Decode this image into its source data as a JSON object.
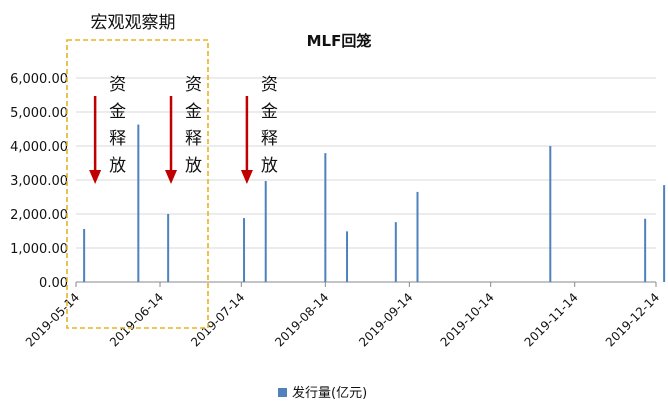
{
  "chart_data": {
    "type": "bar",
    "title": "MLF回笼",
    "series": [
      {
        "name": "发行量(亿元)",
        "color": "#4F81BD",
        "points": [
          {
            "x": "2019-05-17",
            "y": 1560
          },
          {
            "x": "2019-06-06",
            "y": 4630
          },
          {
            "x": "2019-06-17",
            "y": 2000
          },
          {
            "x": "2019-07-15",
            "y": 1880
          },
          {
            "x": "2019-07-23",
            "y": 2970
          },
          {
            "x": "2019-08-14",
            "y": 3790
          },
          {
            "x": "2019-08-22",
            "y": 1490
          },
          {
            "x": "2019-09-09",
            "y": 1760
          },
          {
            "x": "2019-09-17",
            "y": 2650
          },
          {
            "x": "2019-11-05",
            "y": 4000
          },
          {
            "x": "2019-12-10",
            "y": 1860
          },
          {
            "x": "2019-12-17",
            "y": 2850
          }
        ]
      }
    ],
    "x_ticks": [
      "2019-05-14",
      "2019-06-14",
      "2019-07-14",
      "2019-08-14",
      "2019-09-14",
      "2019-10-14",
      "2019-11-14",
      "2019-12-14"
    ],
    "x_range": [
      "2019-05-14",
      "2019-12-14"
    ],
    "y_ticks": [
      "0.00",
      "1,000.00",
      "2,000.00",
      "3,000.00",
      "4,000.00",
      "5,000.00",
      "6,000.00"
    ],
    "ylim": [
      0,
      6000
    ],
    "grid": true,
    "legend_position": "bottom-center",
    "annotations": {
      "box_label": "宏观观察期",
      "release_label": [
        "资",
        "金",
        "释",
        "放"
      ],
      "release_arrows": [
        {
          "x": "2019-05-17",
          "label": [
            "资",
            "金",
            "释",
            "放"
          ]
        },
        {
          "x": "2019-06-14",
          "label": [
            "资",
            "金",
            "释",
            "放"
          ]
        },
        {
          "x": "2019-07-12",
          "label": [
            "资",
            "金",
            "释",
            "放"
          ]
        }
      ]
    }
  }
}
